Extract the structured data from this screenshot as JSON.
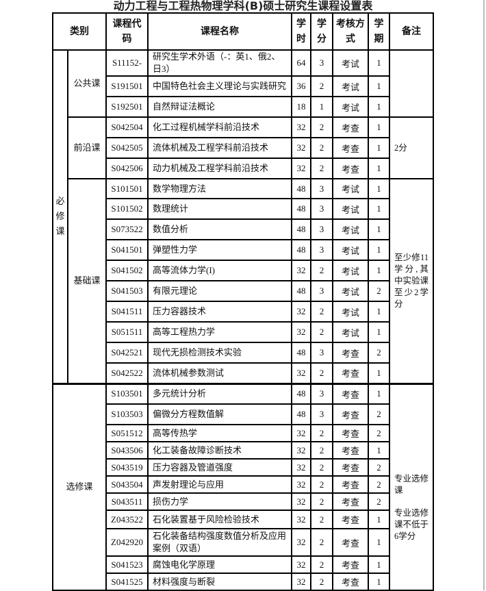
{
  "title": "动力工程与工程热物理学科(B)硕士研究生课程设置表",
  "headers": {
    "category": "类别",
    "code": "课程代码",
    "name": "课程名称",
    "hours": "学时",
    "credits": "学分",
    "assessment": "考核方式",
    "semester": "学期",
    "remarks": "备注"
  },
  "groups": [
    {
      "top": "必修课",
      "sub": "公共课",
      "remark": "",
      "courses": [
        {
          "code": "S11152-",
          "name": "研究生学术外语（-：英1、俄2、日3）",
          "hours": "64",
          "credits": "3",
          "assessment": "考试",
          "semester": "1"
        },
        {
          "code": "S191501",
          "name": "中国特色社会主义理论与实践研究",
          "hours": "36",
          "credits": "2",
          "assessment": "考试",
          "semester": "1"
        },
        {
          "code": "S192501",
          "name": "自然辩证法概论",
          "hours": "18",
          "credits": "1",
          "assessment": "考试",
          "semester": "1"
        }
      ]
    },
    {
      "top": "必修课",
      "sub": "前沿课",
      "remark": "2分",
      "courses": [
        {
          "code": "S042504",
          "name": "化工过程机械学科前沿技术",
          "hours": "32",
          "credits": "2",
          "assessment": "考查",
          "semester": "1"
        },
        {
          "code": "S042505",
          "name": "流体机械及工程学科前沿技术",
          "hours": "32",
          "credits": "2",
          "assessment": "考查",
          "semester": "1"
        },
        {
          "code": "S042506",
          "name": "动力机械及工程学科前沿技术",
          "hours": "32",
          "credits": "2",
          "assessment": "考查",
          "semester": "1"
        }
      ]
    },
    {
      "top": "必修课",
      "sub": "基础课",
      "remark": "至少修11学分,其中实验课至少2学分",
      "courses": [
        {
          "code": "S101501",
          "name": "数学物理方法",
          "hours": "48",
          "credits": "3",
          "assessment": "考试",
          "semester": "1"
        },
        {
          "code": "S101502",
          "name": "数理统计",
          "hours": "48",
          "credits": "3",
          "assessment": "考试",
          "semester": "1"
        },
        {
          "code": "S073522",
          "name": "数值分析",
          "hours": "48",
          "credits": "3",
          "assessment": "考试",
          "semester": "1"
        },
        {
          "code": "S041501",
          "name": "弹塑性力学",
          "hours": "48",
          "credits": "3",
          "assessment": "考试",
          "semester": "1"
        },
        {
          "code": "S041502",
          "name": "高等流体力学(I)",
          "hours": "32",
          "credits": "2",
          "assessment": "考试",
          "semester": "1"
        },
        {
          "code": "S041503",
          "name": "有限元理论",
          "hours": "48",
          "credits": "3",
          "assessment": "考试",
          "semester": "2"
        },
        {
          "code": "S041511",
          "name": "压力容器技术",
          "hours": "32",
          "credits": "2",
          "assessment": "考试",
          "semester": "1"
        },
        {
          "code": "S051511",
          "name": "高等工程热力学",
          "hours": "32",
          "credits": "2",
          "assessment": "考试",
          "semester": "1"
        },
        {
          "code": "S042521",
          "name": "现代无损检测技术实验",
          "hours": "48",
          "credits": "3",
          "assessment": "考查",
          "semester": "2"
        },
        {
          "code": "S042522",
          "name": "流体机械参数测试",
          "hours": "32",
          "credits": "2",
          "assessment": "考查",
          "semester": "1"
        }
      ]
    },
    {
      "top": "选修课",
      "sub": "",
      "remark": "专业选修课",
      "remark2": "专业选修课不低于6学分",
      "courses": [
        {
          "code": "S103501",
          "name": "多元统计分析",
          "hours": "48",
          "credits": "3",
          "assessment": "考查",
          "semester": "1"
        },
        {
          "code": "S103503",
          "name": "偏微分方程数值解",
          "hours": "48",
          "credits": "3",
          "assessment": "考查",
          "semester": "2"
        },
        {
          "code": "S051512",
          "name": "高等传热学",
          "hours": "32",
          "credits": "2",
          "assessment": "考查",
          "semester": "2"
        },
        {
          "code": "S043506",
          "name": "化工装备故障诊断技术",
          "hours": "32",
          "credits": "2",
          "assessment": "考查",
          "semester": "1"
        },
        {
          "code": "S043519",
          "name": "压力容器及管道强度",
          "hours": "32",
          "credits": "2",
          "assessment": "考查",
          "semester": "2"
        },
        {
          "code": "S043504",
          "name": "声发射理论与应用",
          "hours": "32",
          "credits": "2",
          "assessment": "考查",
          "semester": "2"
        },
        {
          "code": "S043511",
          "name": "损伤力学",
          "hours": "32",
          "credits": "2",
          "assessment": "考查",
          "semester": "2"
        },
        {
          "code": "Z043522",
          "name": "石化装置基于风险检验技术",
          "hours": "32",
          "credits": "2",
          "assessment": "考查",
          "semester": "1"
        },
        {
          "code": "Z042920",
          "name": "石化装备结构强度数值分析及应用案例（双语）",
          "hours": "32",
          "credits": "2",
          "assessment": "考查",
          "semester": "1"
        },
        {
          "code": "S041523",
          "name": "腐蚀电化学原理",
          "hours": "32",
          "credits": "2",
          "assessment": "考查",
          "semester": "1"
        },
        {
          "code": "S041525",
          "name": "材料强度与断裂",
          "hours": "32",
          "credits": "2",
          "assessment": "考查",
          "semester": "1"
        }
      ]
    }
  ]
}
